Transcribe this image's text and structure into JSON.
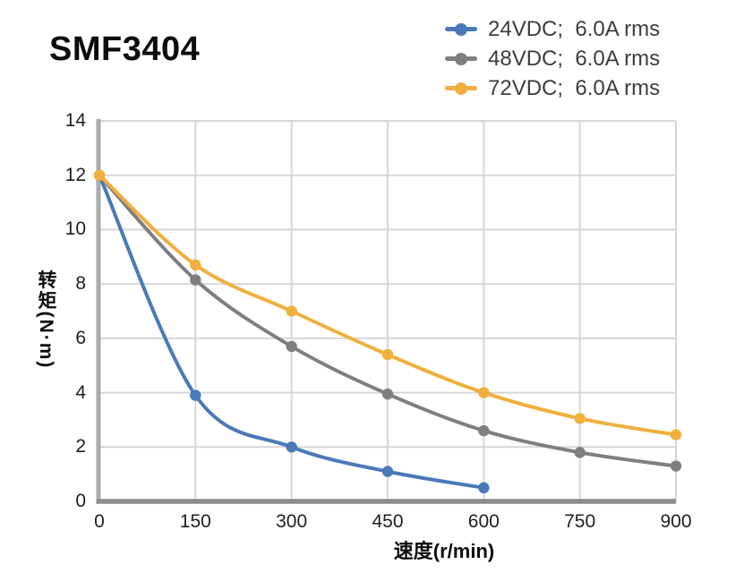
{
  "title": "SMF3404",
  "axes": {
    "x_label": "速度(r/min)",
    "y_label": "转矩(N·m)"
  },
  "chart_data": {
    "type": "line",
    "title": "SMF3404",
    "xlabel": "速度(r/min)",
    "ylabel": "转矩(N·m)",
    "xlim": [
      0,
      900
    ],
    "ylim": [
      0,
      14
    ],
    "xticks": [
      0,
      150,
      300,
      450,
      600,
      750,
      900
    ],
    "yticks": [
      0,
      2,
      4,
      6,
      8,
      10,
      12,
      14
    ],
    "grid": true,
    "legend_position": "top-right",
    "series": [
      {
        "name": "24VDC;  6.0A rms",
        "color": "#4A79B8",
        "x": [
          0,
          150,
          300,
          450,
          600
        ],
        "y": [
          12,
          3.9,
          2.0,
          1.1,
          0.5
        ]
      },
      {
        "name": "48VDC;  6.0A rms",
        "color": "#7F7F7F",
        "x": [
          0,
          150,
          300,
          450,
          600,
          750,
          900
        ],
        "y": [
          12,
          8.15,
          5.7,
          3.95,
          2.6,
          1.8,
          1.3
        ]
      },
      {
        "name": "72VDC;  6.0A rms",
        "color": "#F0AF3E",
        "x": [
          0,
          150,
          300,
          450,
          600,
          750,
          900
        ],
        "y": [
          12,
          8.7,
          7.0,
          5.4,
          4.0,
          3.05,
          2.45
        ]
      }
    ],
    "colors": {
      "grid": "#D7D7DA",
      "axis_x": "#8C8C8C",
      "axis_y": "#ABABAB",
      "tick_text": "#1F1F1F",
      "legend_text": "#3D3D3D",
      "title_text": "#0D0D0D"
    }
  }
}
